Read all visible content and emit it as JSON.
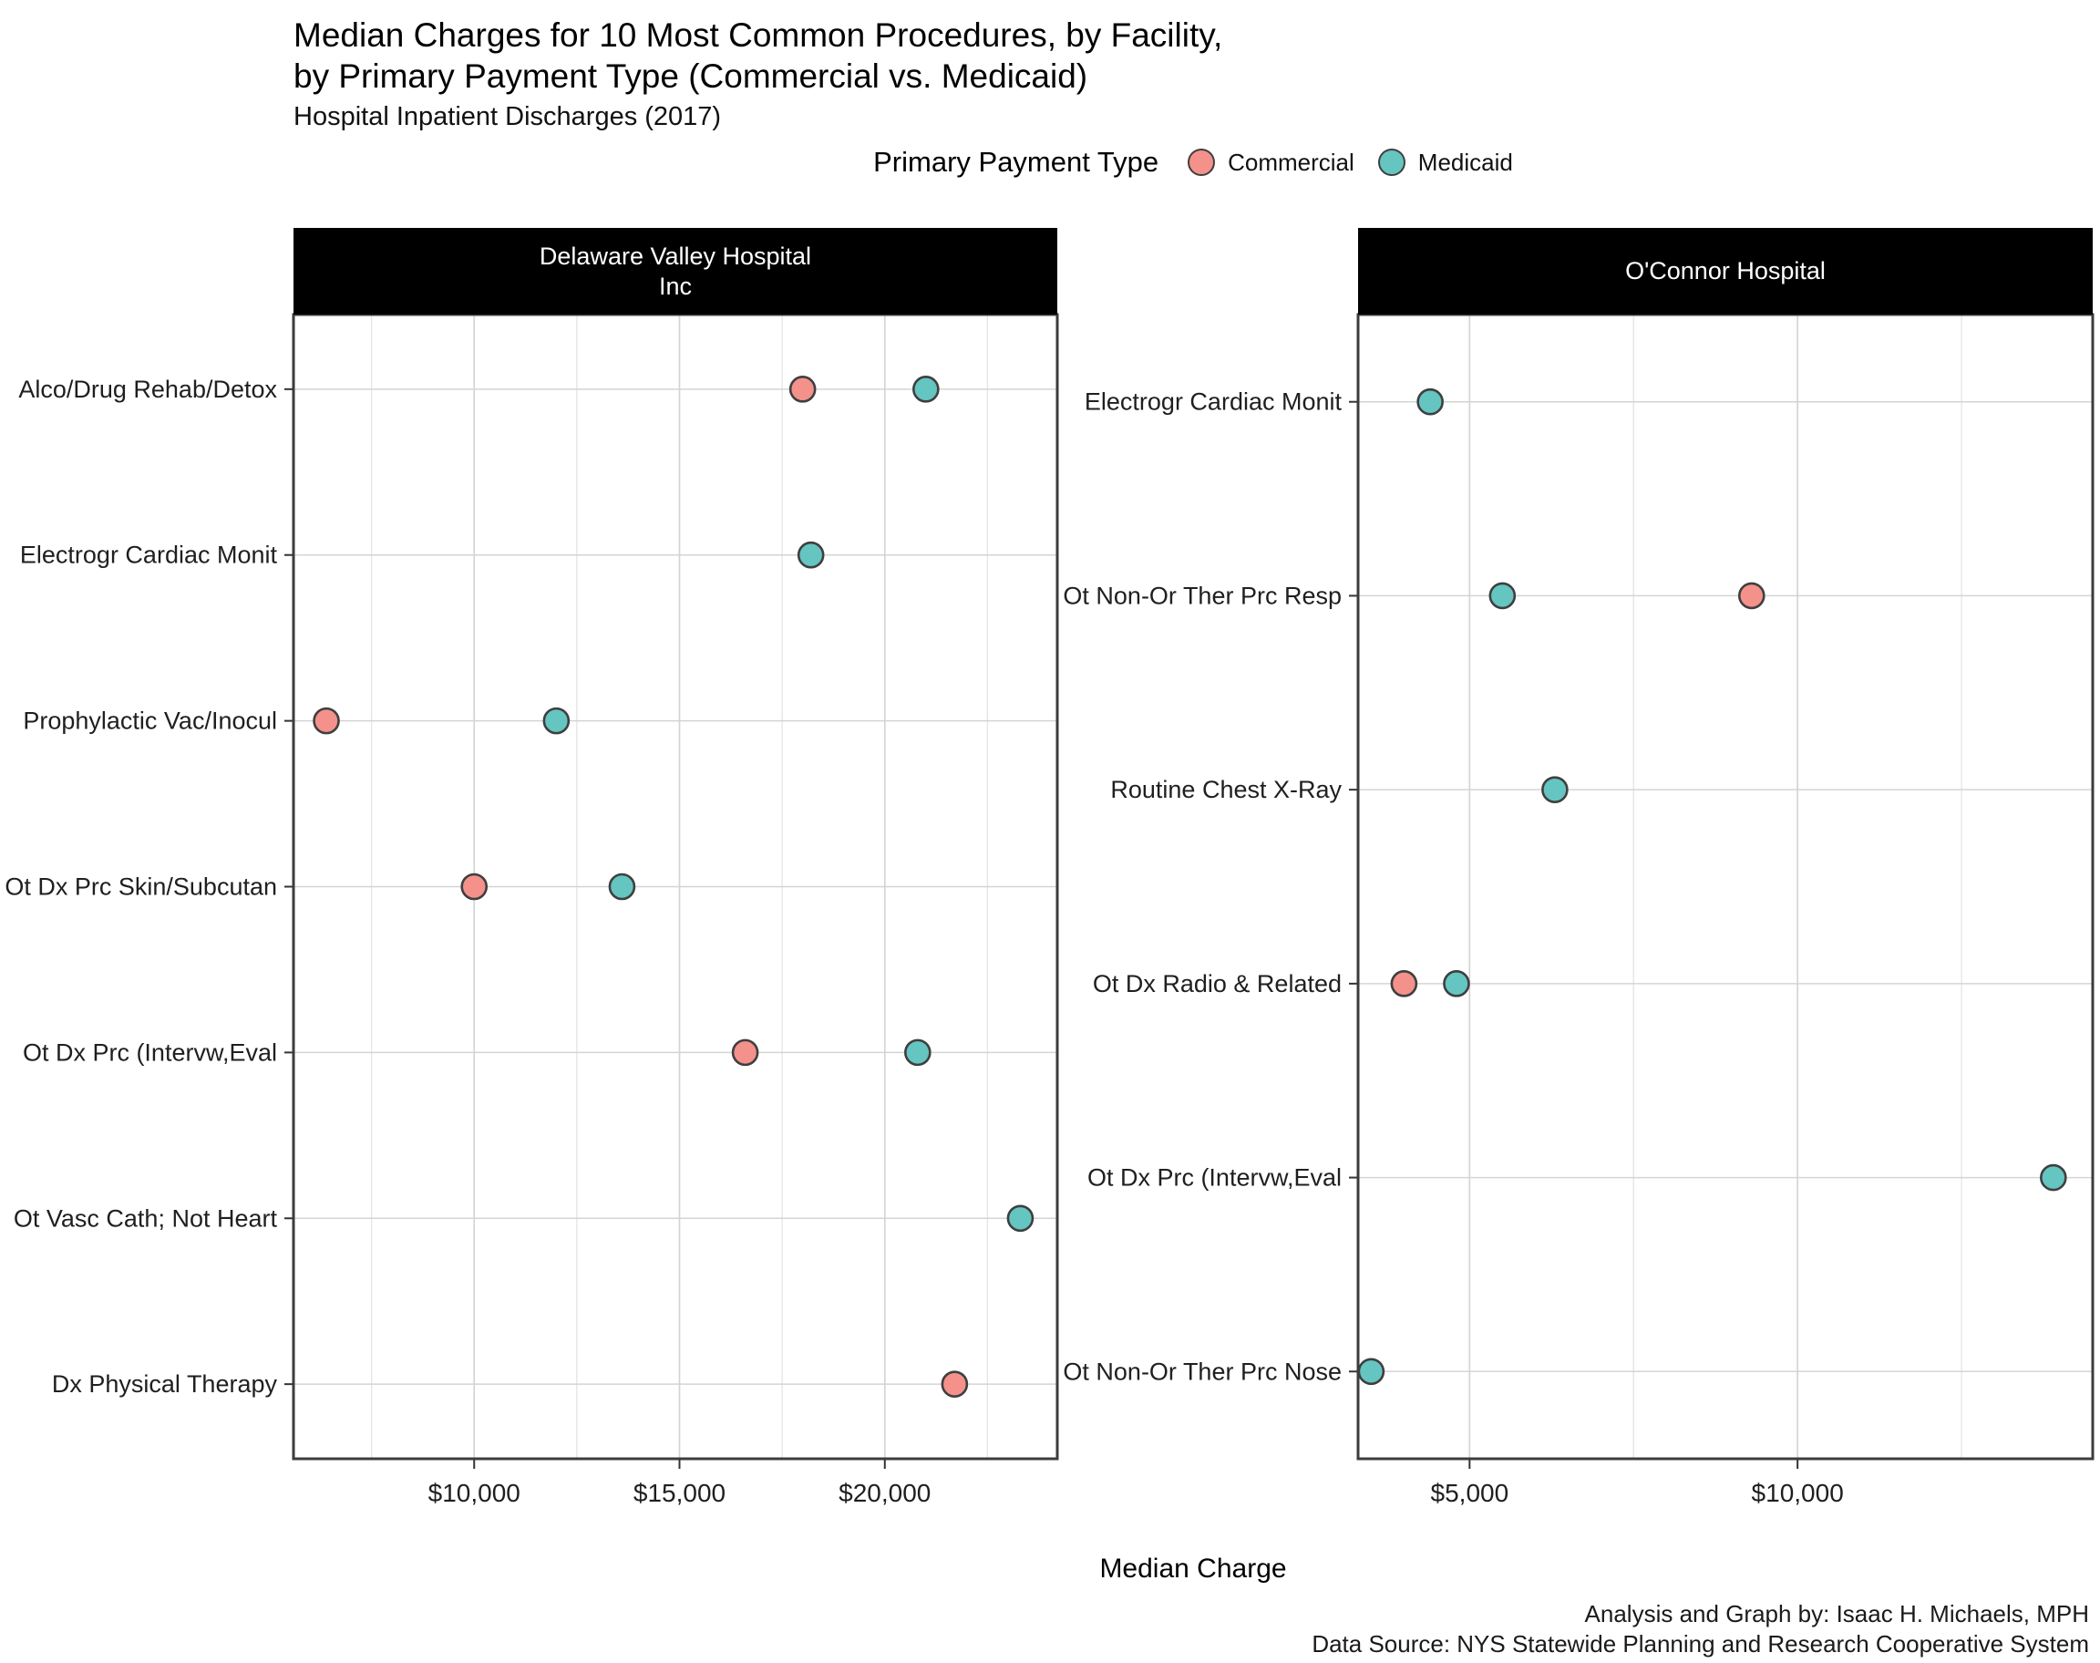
{
  "title_line1": "Median Charges for 10 Most Common Procedures, by Facility,",
  "title_line2": "by Primary Payment Type (Commercial vs. Medicaid)",
  "subtitle": "Hospital Inpatient Discharges (2017)",
  "xlabel": "Median Charge",
  "caption_line1": "Analysis and Graph by: Isaac H. Michaels, MPH",
  "caption_line2": "Data Source: NYS Statewide Planning and Research Cooperative System",
  "legend": {
    "title": "Primary Payment Type",
    "items": [
      {
        "label": "Commercial",
        "color": "#F4918B"
      },
      {
        "label": "Medicaid",
        "color": "#64C5C1"
      }
    ]
  },
  "colors": {
    "dot_stroke": "#3F3F3F",
    "panel_border": "#3C3C3C",
    "grid_major": "#D4D4D4",
    "grid_minor": "#E4E4E4",
    "axis_tick": "#333333",
    "axis_text": "#1F1F1F",
    "strip_bg": "#000000",
    "strip_text": "#FFFFFF"
  },
  "chart_data": [
    {
      "type": "scatter",
      "facet": "Delaware Valley Hospital Inc",
      "strip_lines": [
        "Delaware Valley Hospital",
        "Inc"
      ],
      "xlim": [
        5600,
        24200
      ],
      "minor_step": 2500,
      "ticks": [
        {
          "value": 10000,
          "label": "$10,000"
        },
        {
          "value": 15000,
          "label": "$15,000"
        },
        {
          "value": 20000,
          "label": "$20,000"
        }
      ],
      "rows": [
        {
          "label": "Alco/Drug Rehab/Detox",
          "commercial": 18000,
          "medicaid": 21000
        },
        {
          "label": "Electrogr Cardiac Monit",
          "medicaid": 18200
        },
        {
          "label": "Prophylactic Vac/Inocul",
          "commercial": 6400,
          "medicaid": 12000
        },
        {
          "label": "Ot Dx Prc Skin/Subcutan",
          "commercial": 10000,
          "medicaid": 13600
        },
        {
          "label": "Ot Dx Prc (Intervw,Eval",
          "commercial": 16600,
          "medicaid": 20800
        },
        {
          "label": "Ot Vasc Cath; Not Heart",
          "medicaid": 23300
        },
        {
          "label": "Dx Physical Therapy",
          "commercial": 21700
        }
      ]
    },
    {
      "type": "scatter",
      "facet": "O'Connor Hospital",
      "strip_lines": [
        "O'Connor Hospital"
      ],
      "xlim": [
        3300,
        14500
      ],
      "minor_step": 2500,
      "ticks": [
        {
          "value": 5000,
          "label": "$5,000"
        },
        {
          "value": 10000,
          "label": "$10,000"
        }
      ],
      "rows": [
        {
          "label": "Electrogr Cardiac Monit",
          "medicaid": 4400
        },
        {
          "label": "Ot Non-Or Ther Prc Resp",
          "commercial": 9300,
          "medicaid": 5500
        },
        {
          "label": "Routine Chest X-Ray",
          "medicaid": 6300
        },
        {
          "label": "Ot Dx Radio & Related",
          "commercial": 4000,
          "medicaid": 4800
        },
        {
          "label": "Ot Dx Prc (Intervw,Eval",
          "medicaid": 13900
        },
        {
          "label": "Ot Non-Or Ther Prc Nose",
          "medicaid": 3500
        }
      ]
    }
  ]
}
